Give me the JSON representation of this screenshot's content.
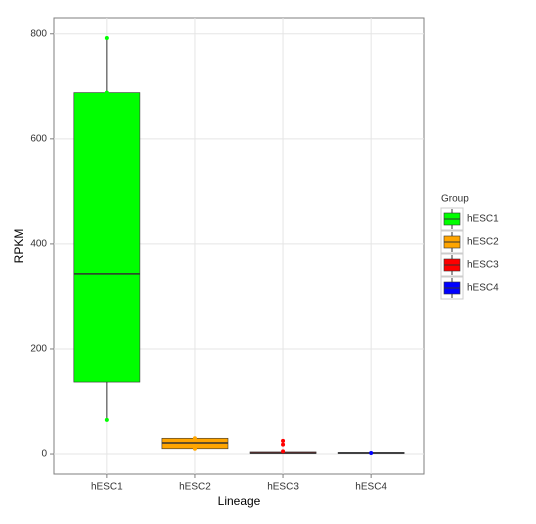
{
  "chart_data": {
    "type": "box",
    "x_label": "Lineage",
    "y_label": "RPKM",
    "legend_title": "Group",
    "categories": [
      "hESC1",
      "hESC2",
      "hESC3",
      "hESC4"
    ],
    "series": [
      {
        "name": "hESC1",
        "color": "#00ff00",
        "min": 65,
        "q1": 137,
        "median": 343,
        "q3": 688,
        "max": 792,
        "points": [
          792,
          688,
          65
        ]
      },
      {
        "name": "hESC2",
        "color": "#ffa500",
        "min": 8,
        "q1": 10,
        "median": 21,
        "q3": 30,
        "max": 30,
        "points": [
          30,
          10
        ]
      },
      {
        "name": "hESC3",
        "color": "#ff0000",
        "min": 0,
        "q1": 1,
        "median": 2,
        "q3": 4,
        "max": 5,
        "points": [
          25,
          18,
          5
        ]
      },
      {
        "name": "hESC4",
        "color": "#0000ff",
        "min": 0,
        "q1": 1,
        "median": 2,
        "q3": 3,
        "max": 3,
        "points": [
          2
        ]
      }
    ],
    "ylim": [
      -38,
      830
    ],
    "yticks": [
      0,
      200,
      400,
      600,
      800
    ],
    "grid": true,
    "legend": "right"
  }
}
